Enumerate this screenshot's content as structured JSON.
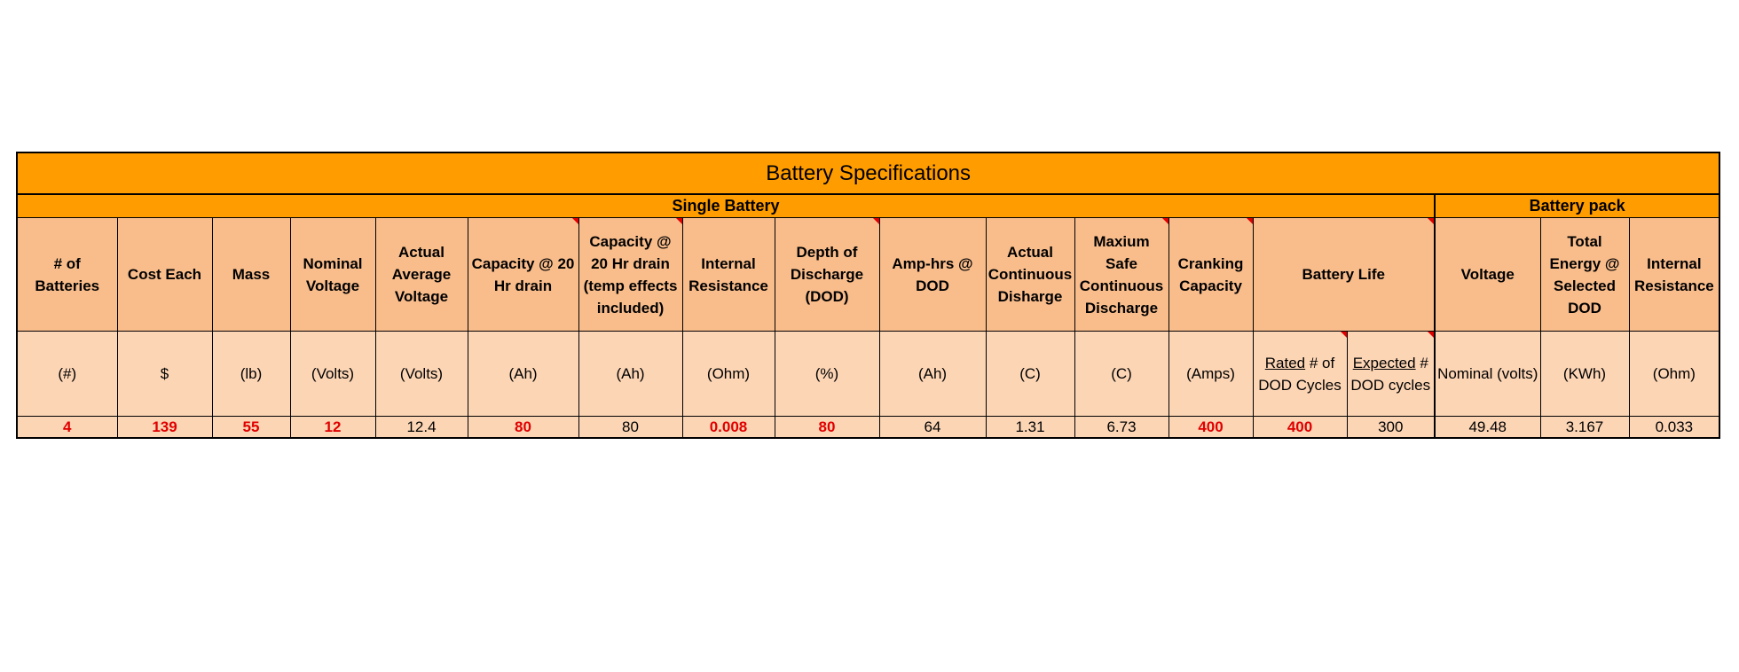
{
  "title": "Battery Specifications",
  "sections": {
    "single": "Single Battery",
    "pack": "Battery pack"
  },
  "headers": {
    "batteries": "# of Batteries",
    "cost": "Cost Each",
    "mass": "Mass",
    "nominal_voltage": "Nominal Voltage",
    "actual_voltage": "Actual Average Voltage",
    "capacity_20hr": "Capacity @ 20 Hr drain",
    "capacity_temp": "Capacity @ 20 Hr drain (temp effects included)",
    "internal_resistance": "Internal Resistance",
    "dod": "Depth of Discharge (DOD)",
    "amp_hrs": "Amp-hrs @ DOD",
    "continuous": "Actual Continuous Disharge",
    "max_safe": "Maxium Safe Continuous Discharge",
    "cranking": "Cranking Capacity",
    "battery_life": "Battery Life",
    "pack_voltage": "Voltage",
    "total_energy": "Total Energy @ Selected DOD",
    "pack_resistance": "Internal Resistance"
  },
  "units": {
    "batteries": "(#)",
    "cost": "$",
    "mass": "(lb)",
    "nominal_voltage": "(Volts)",
    "actual_voltage": "(Volts)",
    "capacity_20hr": "(Ah)",
    "capacity_temp": "(Ah)",
    "internal_resistance": "(Ohm)",
    "dod": "(%)",
    "amp_hrs": "(Ah)",
    "continuous": "(C)",
    "max_safe": "(C)",
    "cranking": "(Amps)",
    "rated_cycles_underlined": "Rated",
    "rated_cycles_rest": " # of DOD Cycles",
    "expected_cycles_underlined": "Expected",
    "expected_cycles_rest": " # DOD cycles",
    "pack_voltage": "Nominal (volts)",
    "total_energy": "(KWh)",
    "pack_resistance": "(Ohm)"
  },
  "values": {
    "batteries": "4",
    "cost": "139",
    "mass": "55",
    "nominal_voltage": "12",
    "actual_voltage": "12.4",
    "capacity_20hr": "80",
    "capacity_temp": "80",
    "internal_resistance": "0.008",
    "dod": "80",
    "amp_hrs": "64",
    "continuous": "1.31",
    "max_safe": "6.73",
    "cranking": "400",
    "rated_cycles": "400",
    "expected_cycles": "300",
    "pack_voltage": "49.48",
    "total_energy": "3.167",
    "pack_resistance": "0.033"
  },
  "colors": {
    "title_fill": "#ff9c00",
    "header_fill": "#f9bd8c",
    "body_fill": "#fcd5b5",
    "input_text": "#e00000",
    "comment_marker": "#e00000"
  }
}
